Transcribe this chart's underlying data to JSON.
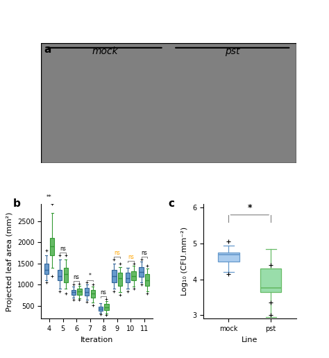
{
  "panel_b": {
    "iterations": [
      4,
      5,
      6,
      7,
      8,
      9,
      10,
      11
    ],
    "mock_boxes": {
      "4": {
        "med": 1350,
        "q1": 1250,
        "q3": 1500,
        "whislo": 1100,
        "whishi": 1700,
        "fliers": [
          1050,
          1800
        ]
      },
      "5": {
        "med": 1200,
        "q1": 1100,
        "q3": 1350,
        "whislo": 900,
        "whishi": 1600,
        "fliers": [
          850,
          1700
        ]
      },
      "6": {
        "med": 820,
        "q1": 760,
        "q3": 880,
        "whislo": 700,
        "whishi": 950,
        "fliers": [
          650,
          1000
        ]
      },
      "7": {
        "med": 820,
        "q1": 740,
        "q3": 920,
        "whislo": 640,
        "whishi": 1000,
        "fliers": [
          600,
          1050
        ]
      },
      "8": {
        "med": 430,
        "q1": 380,
        "q3": 490,
        "whislo": 330,
        "whishi": 560,
        "fliers": [
          300
        ]
      },
      "9": {
        "med": 1200,
        "q1": 1050,
        "q3": 1350,
        "whislo": 900,
        "whishi": 1500,
        "fliers": [
          850,
          1600
        ]
      },
      "10": {
        "med": 1150,
        "q1": 1050,
        "q3": 1280,
        "whislo": 900,
        "whishi": 1400,
        "fliers": [
          850
        ]
      },
      "11": {
        "med": 1300,
        "q1": 1180,
        "q3": 1420,
        "whislo": 1050,
        "whishi": 1550,
        "fliers": [
          1000,
          1600
        ]
      }
    },
    "pst_boxes": {
      "4": {
        "med": 1900,
        "q1": 1700,
        "q3": 2100,
        "whislo": 1400,
        "whishi": 2700,
        "fliers": [
          1200,
          2900
        ]
      },
      "5": {
        "med": 1250,
        "q1": 1050,
        "q3": 1400,
        "whislo": 900,
        "whishi": 1600,
        "fliers": [
          800,
          1700
        ]
      },
      "6": {
        "med": 840,
        "q1": 760,
        "q3": 900,
        "whislo": 680,
        "whishi": 980,
        "fliers": [
          640,
          1020
        ]
      },
      "7": {
        "med": 800,
        "q1": 700,
        "q3": 880,
        "whislo": 580,
        "whishi": 960,
        "fliers": [
          520,
          1000
        ]
      },
      "8": {
        "med": 470,
        "q1": 400,
        "q3": 540,
        "whislo": 320,
        "whishi": 620,
        "fliers": [
          280,
          660
        ]
      },
      "9": {
        "med": 1150,
        "q1": 980,
        "q3": 1280,
        "whislo": 820,
        "whishi": 1420,
        "fliers": [
          760,
          1500
        ]
      },
      "10": {
        "med": 1200,
        "q1": 1100,
        "q3": 1320,
        "whislo": 950,
        "whishi": 1450,
        "fliers": [
          900,
          1500
        ]
      },
      "11": {
        "med": 1100,
        "q1": 980,
        "q3": 1250,
        "whislo": 840,
        "whishi": 1380,
        "fliers": [
          800,
          1450
        ]
      }
    },
    "mock_color": "#6699CC",
    "pst_color": "#66BB66",
    "mock_color_dark": "#336699",
    "pst_color_dark": "#339933",
    "ylabel": "Projected leaf area (mm²)",
    "xlabel": "Iteration",
    "ylim": [
      200,
      2900
    ],
    "significance": {
      "4": "**",
      "5": "ns",
      "6": "ns",
      "7": "*",
      "8": "ns",
      "9": "ns",
      "10": "ns",
      "11": "ns"
    },
    "sig_colors": {
      "4": "black",
      "5": "black",
      "6": "black",
      "7": "black",
      "8": "black",
      "9": "orange",
      "10": "orange",
      "11": "black"
    }
  },
  "panel_c": {
    "mock_box": {
      "med": 4.68,
      "q1": 4.5,
      "q3": 4.75,
      "whislo": 4.2,
      "whishi": 4.95,
      "fliers": [
        4.15,
        5.05
      ]
    },
    "pst_box": {
      "med": 3.75,
      "q1": 3.65,
      "q3": 4.3,
      "whislo": 2.95,
      "whishi": 4.85,
      "fliers": [
        3.0,
        3.35,
        4.4
      ]
    },
    "mock_color": "#AACCEE",
    "pst_color": "#99DDAA",
    "mock_color_dark": "#6699CC",
    "pst_color_dark": "#66BB66",
    "ylabel": "Log₁₀ (CFU.mm⁻²)",
    "xlabel": "Line",
    "ylim": [
      2.9,
      6.1
    ],
    "yticks": [
      3,
      4,
      5,
      6
    ],
    "significance": "*",
    "categories": [
      "mock",
      "pst"
    ]
  },
  "background_color": "#ffffff",
  "panel_label_fontsize": 11,
  "axis_fontsize": 8,
  "tick_fontsize": 7,
  "legend_fontsize": 8
}
